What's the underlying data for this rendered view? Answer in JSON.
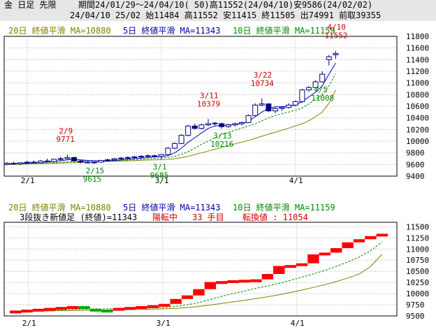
{
  "header": {
    "row1_label": "金 日足 先限",
    "row1_period": "期間24/01/29〜24/04/10( 50)高11552(24/04/10)安9586(24/02/02)",
    "row2": "24/04/10 25/02 始11484 高11552 安11415 終11505 出74991 前取39355"
  },
  "colors": {
    "candle_outline": "#000080",
    "candle_bear_fill": "#000080",
    "ma5": "#0000cc",
    "ma10": "#008800",
    "ma20": "#808000",
    "renko_up": "#ff0000",
    "renko_down": "#00aa00",
    "grid": "#b0b0b0",
    "annotation_high": "#cc0000",
    "annotation_low": "#008800"
  },
  "top_legend": {
    "ma20": "20日 終値平滑 MA=10880",
    "ma5": "5日 終値平滑 MA=11343",
    "ma10": "10日 終値平滑 MA=11159"
  },
  "bottom_legend": {
    "ma20": "20日 終値平滑 MA=10880",
    "ma5": "5日 終値平滑 MA=11343",
    "ma10": "10日 終値平滑 MA=11159",
    "renko_title": "3段抜き新値足 (終値)=11343",
    "renko_state": "陽転中",
    "renko_count": "33 手目",
    "renko_switch": "転換値 : 11054"
  },
  "chart_data": [
    {
      "type": "candlestick",
      "title": "",
      "x_ticks": [
        "2/1",
        "3/1",
        "4/1"
      ],
      "x_tick_index": [
        3,
        23,
        43
      ],
      "ylim": [
        9400,
        11800
      ],
      "y_ticks": [
        9400,
        9600,
        9800,
        10000,
        10200,
        10400,
        10600,
        10800,
        11000,
        11200,
        11400,
        11600,
        11800
      ],
      "annotations": [
        {
          "date": "2/9",
          "value": "9771",
          "kind": "high",
          "index": 9
        },
        {
          "date": "2/15",
          "value": "9615",
          "kind": "low",
          "index": 13
        },
        {
          "date": "3/1",
          "value": "9685",
          "kind": "low",
          "index": 23
        },
        {
          "date": "3/11",
          "value": "10379",
          "kind": "high",
          "index": 30
        },
        {
          "date": "3/13",
          "value": "10216",
          "kind": "low",
          "index": 32
        },
        {
          "date": "3/22",
          "value": "10734",
          "kind": "high",
          "index": 38
        },
        {
          "date": "4/5",
          "value": "11008",
          "kind": "low",
          "index": 47
        },
        {
          "date": "4/10",
          "value": "11552",
          "kind": "high",
          "index": 49
        }
      ],
      "ohlc": [
        [
          9600,
          9640,
          9586,
          9620
        ],
        [
          9620,
          9650,
          9600,
          9610
        ],
        [
          9610,
          9640,
          9590,
          9630
        ],
        [
          9630,
          9660,
          9610,
          9640
        ],
        [
          9640,
          9670,
          9620,
          9630
        ],
        [
          9630,
          9680,
          9620,
          9660
        ],
        [
          9660,
          9700,
          9640,
          9650
        ],
        [
          9650,
          9700,
          9640,
          9690
        ],
        [
          9690,
          9730,
          9670,
          9700
        ],
        [
          9700,
          9771,
          9690,
          9720
        ],
        [
          9720,
          9730,
          9650,
          9660
        ],
        [
          9660,
          9680,
          9620,
          9640
        ],
        [
          9640,
          9660,
          9620,
          9630
        ],
        [
          9630,
          9650,
          9615,
          9640
        ],
        [
          9640,
          9680,
          9630,
          9670
        ],
        [
          9670,
          9700,
          9650,
          9680
        ],
        [
          9680,
          9710,
          9670,
          9700
        ],
        [
          9700,
          9730,
          9680,
          9710
        ],
        [
          9710,
          9740,
          9690,
          9720
        ],
        [
          9720,
          9750,
          9700,
          9730
        ],
        [
          9730,
          9760,
          9710,
          9740
        ],
        [
          9740,
          9770,
          9720,
          9750
        ],
        [
          9750,
          9770,
          9720,
          9740
        ],
        [
          9740,
          9780,
          9685,
          9770
        ],
        [
          9770,
          9900,
          9760,
          9880
        ],
        [
          9880,
          9980,
          9860,
          9960
        ],
        [
          9960,
          10120,
          9950,
          10100
        ],
        [
          10100,
          10280,
          10080,
          10260
        ],
        [
          10260,
          10300,
          10200,
          10220
        ],
        [
          10220,
          10300,
          10200,
          10280
        ],
        [
          10280,
          10379,
          10260,
          10300
        ],
        [
          10300,
          10330,
          10270,
          10310
        ],
        [
          10300,
          10320,
          10216,
          10250
        ],
        [
          10250,
          10300,
          10230,
          10280
        ],
        [
          10280,
          10320,
          10250,
          10300
        ],
        [
          10300,
          10340,
          10270,
          10320
        ],
        [
          10320,
          10460,
          10310,
          10440
        ],
        [
          10440,
          10650,
          10430,
          10620
        ],
        [
          10620,
          10734,
          10600,
          10640
        ],
        [
          10640,
          10650,
          10500,
          10520
        ],
        [
          10520,
          10580,
          10480,
          10560
        ],
        [
          10560,
          10600,
          10520,
          10580
        ],
        [
          10580,
          10650,
          10560,
          10620
        ],
        [
          10620,
          10700,
          10600,
          10680
        ],
        [
          10680,
          10900,
          10660,
          10880
        ],
        [
          10880,
          10950,
          10850,
          10920
        ],
        [
          10920,
          11050,
          10900,
          11020
        ],
        [
          11020,
          11200,
          11008,
          11150
        ],
        [
          11400,
          11480,
          11300,
          11450
        ],
        [
          11484,
          11552,
          11415,
          11505
        ]
      ],
      "ma5": [
        9610,
        9615,
        9620,
        9625,
        9630,
        9635,
        9645,
        9655,
        9665,
        9680,
        9690,
        9680,
        9670,
        9665,
        9660,
        9665,
        9670,
        9680,
        9690,
        9700,
        9710,
        9720,
        9730,
        9740,
        9750,
        9800,
        9880,
        9980,
        10060,
        10140,
        10220,
        10260,
        10270,
        10280,
        10290,
        10300,
        10340,
        10420,
        10500,
        10560,
        10590,
        10590,
        10600,
        10620,
        10680,
        10760,
        10840,
        10950,
        11150,
        11343
      ],
      "ma10": [
        9605,
        9608,
        9612,
        9616,
        9620,
        9624,
        9628,
        9633,
        9638,
        9645,
        9652,
        9656,
        9660,
        9662,
        9663,
        9664,
        9666,
        9670,
        9676,
        9683,
        9690,
        9698,
        9706,
        9714,
        9722,
        9740,
        9775,
        9820,
        9880,
        9945,
        10000,
        10060,
        10110,
        10150,
        10190,
        10225,
        10260,
        10300,
        10350,
        10400,
        10440,
        10470,
        10500,
        10530,
        10570,
        10640,
        10720,
        10800,
        10950,
        11159
      ],
      "ma20": [
        9600,
        9603,
        9606,
        9609,
        9612,
        9615,
        9618,
        9621,
        9624,
        9628,
        9632,
        9636,
        9640,
        9644,
        9648,
        9652,
        9656,
        9660,
        9664,
        9668,
        9672,
        9676,
        9680,
        9684,
        9688,
        9700,
        9718,
        9740,
        9770,
        9800,
        9830,
        9862,
        9895,
        9925,
        9955,
        9985,
        10015,
        10048,
        10085,
        10120,
        10155,
        10190,
        10225,
        10262,
        10300,
        10350,
        10420,
        10500,
        10650,
        10880
      ]
    },
    {
      "type": "renko",
      "title": "",
      "x_ticks": [
        "2/1",
        "3/1",
        "4/1"
      ],
      "ylim": [
        9500,
        11600
      ],
      "y_ticks": [
        9500,
        9750,
        10000,
        10250,
        10500,
        10750,
        11000,
        11250,
        11500
      ],
      "bricks": [
        {
          "from": 9600,
          "to": 9620,
          "dir": "up"
        },
        {
          "from": 9620,
          "to": 9640,
          "dir": "up"
        },
        {
          "from": 9640,
          "to": 9660,
          "dir": "up"
        },
        {
          "from": 9660,
          "to": 9680,
          "dir": "up"
        },
        {
          "from": 9680,
          "to": 9700,
          "dir": "up"
        },
        {
          "from": 9700,
          "to": 9720,
          "dir": "up"
        },
        {
          "from": 9720,
          "to": 9660,
          "dir": "down"
        },
        {
          "from": 9660,
          "to": 9640,
          "dir": "down"
        },
        {
          "from": 9640,
          "to": 9630,
          "dir": "down"
        },
        {
          "from": 9630,
          "to": 9680,
          "dir": "up"
        },
        {
          "from": 9680,
          "to": 9700,
          "dir": "up"
        },
        {
          "from": 9700,
          "to": 9720,
          "dir": "up"
        },
        {
          "from": 9720,
          "to": 9740,
          "dir": "up"
        },
        {
          "from": 9740,
          "to": 9770,
          "dir": "up"
        },
        {
          "from": 9770,
          "to": 9880,
          "dir": "up"
        },
        {
          "from": 9880,
          "to": 9960,
          "dir": "up"
        },
        {
          "from": 9960,
          "to": 10100,
          "dir": "up"
        },
        {
          "from": 10100,
          "to": 10260,
          "dir": "up"
        },
        {
          "from": 10260,
          "to": 10280,
          "dir": "up"
        },
        {
          "from": 10280,
          "to": 10300,
          "dir": "up"
        },
        {
          "from": 10300,
          "to": 10310,
          "dir": "up"
        },
        {
          "from": 10310,
          "to": 10320,
          "dir": "up"
        },
        {
          "from": 10320,
          "to": 10440,
          "dir": "up"
        },
        {
          "from": 10440,
          "to": 10620,
          "dir": "up"
        },
        {
          "from": 10620,
          "to": 10640,
          "dir": "up"
        },
        {
          "from": 10640,
          "to": 10680,
          "dir": "up"
        },
        {
          "from": 10680,
          "to": 10880,
          "dir": "up"
        },
        {
          "from": 10880,
          "to": 10920,
          "dir": "up"
        },
        {
          "from": 10920,
          "to": 11020,
          "dir": "up"
        },
        {
          "from": 11020,
          "to": 11150,
          "dir": "up"
        },
        {
          "from": 11150,
          "to": 11220,
          "dir": "up"
        },
        {
          "from": 11220,
          "to": 11290,
          "dir": "up"
        },
        {
          "from": 11290,
          "to": 11343,
          "dir": "up"
        }
      ],
      "ma5": [
        9610,
        9625,
        9640,
        9655,
        9670,
        9685,
        9690,
        9680,
        9668,
        9665,
        9672,
        9688,
        9705,
        9725,
        9770,
        9830,
        9920,
        10040,
        10140,
        10200,
        10250,
        10290,
        10320,
        10380,
        10460,
        10540,
        10620,
        10720,
        10820,
        10930,
        11050,
        11180,
        11343
      ],
      "ma10": [
        9605,
        9612,
        9620,
        9628,
        9637,
        9646,
        9652,
        9656,
        9658,
        9661,
        9665,
        9672,
        9681,
        9692,
        9715,
        9750,
        9800,
        9870,
        9940,
        10000,
        10060,
        10120,
        10170,
        10230,
        10300,
        10370,
        10440,
        10520,
        10610,
        10710,
        10820,
        10960,
        11159
      ],
      "ma20": [
        9600,
        9604,
        9608,
        9612,
        9617,
        9622,
        9626,
        9630,
        9633,
        9637,
        9641,
        9646,
        9652,
        9659,
        9670,
        9688,
        9712,
        9745,
        9780,
        9815,
        9850,
        9890,
        9930,
        9975,
        10025,
        10080,
        10140,
        10200,
        10270,
        10350,
        10440,
        10610,
        10880
      ]
    }
  ]
}
